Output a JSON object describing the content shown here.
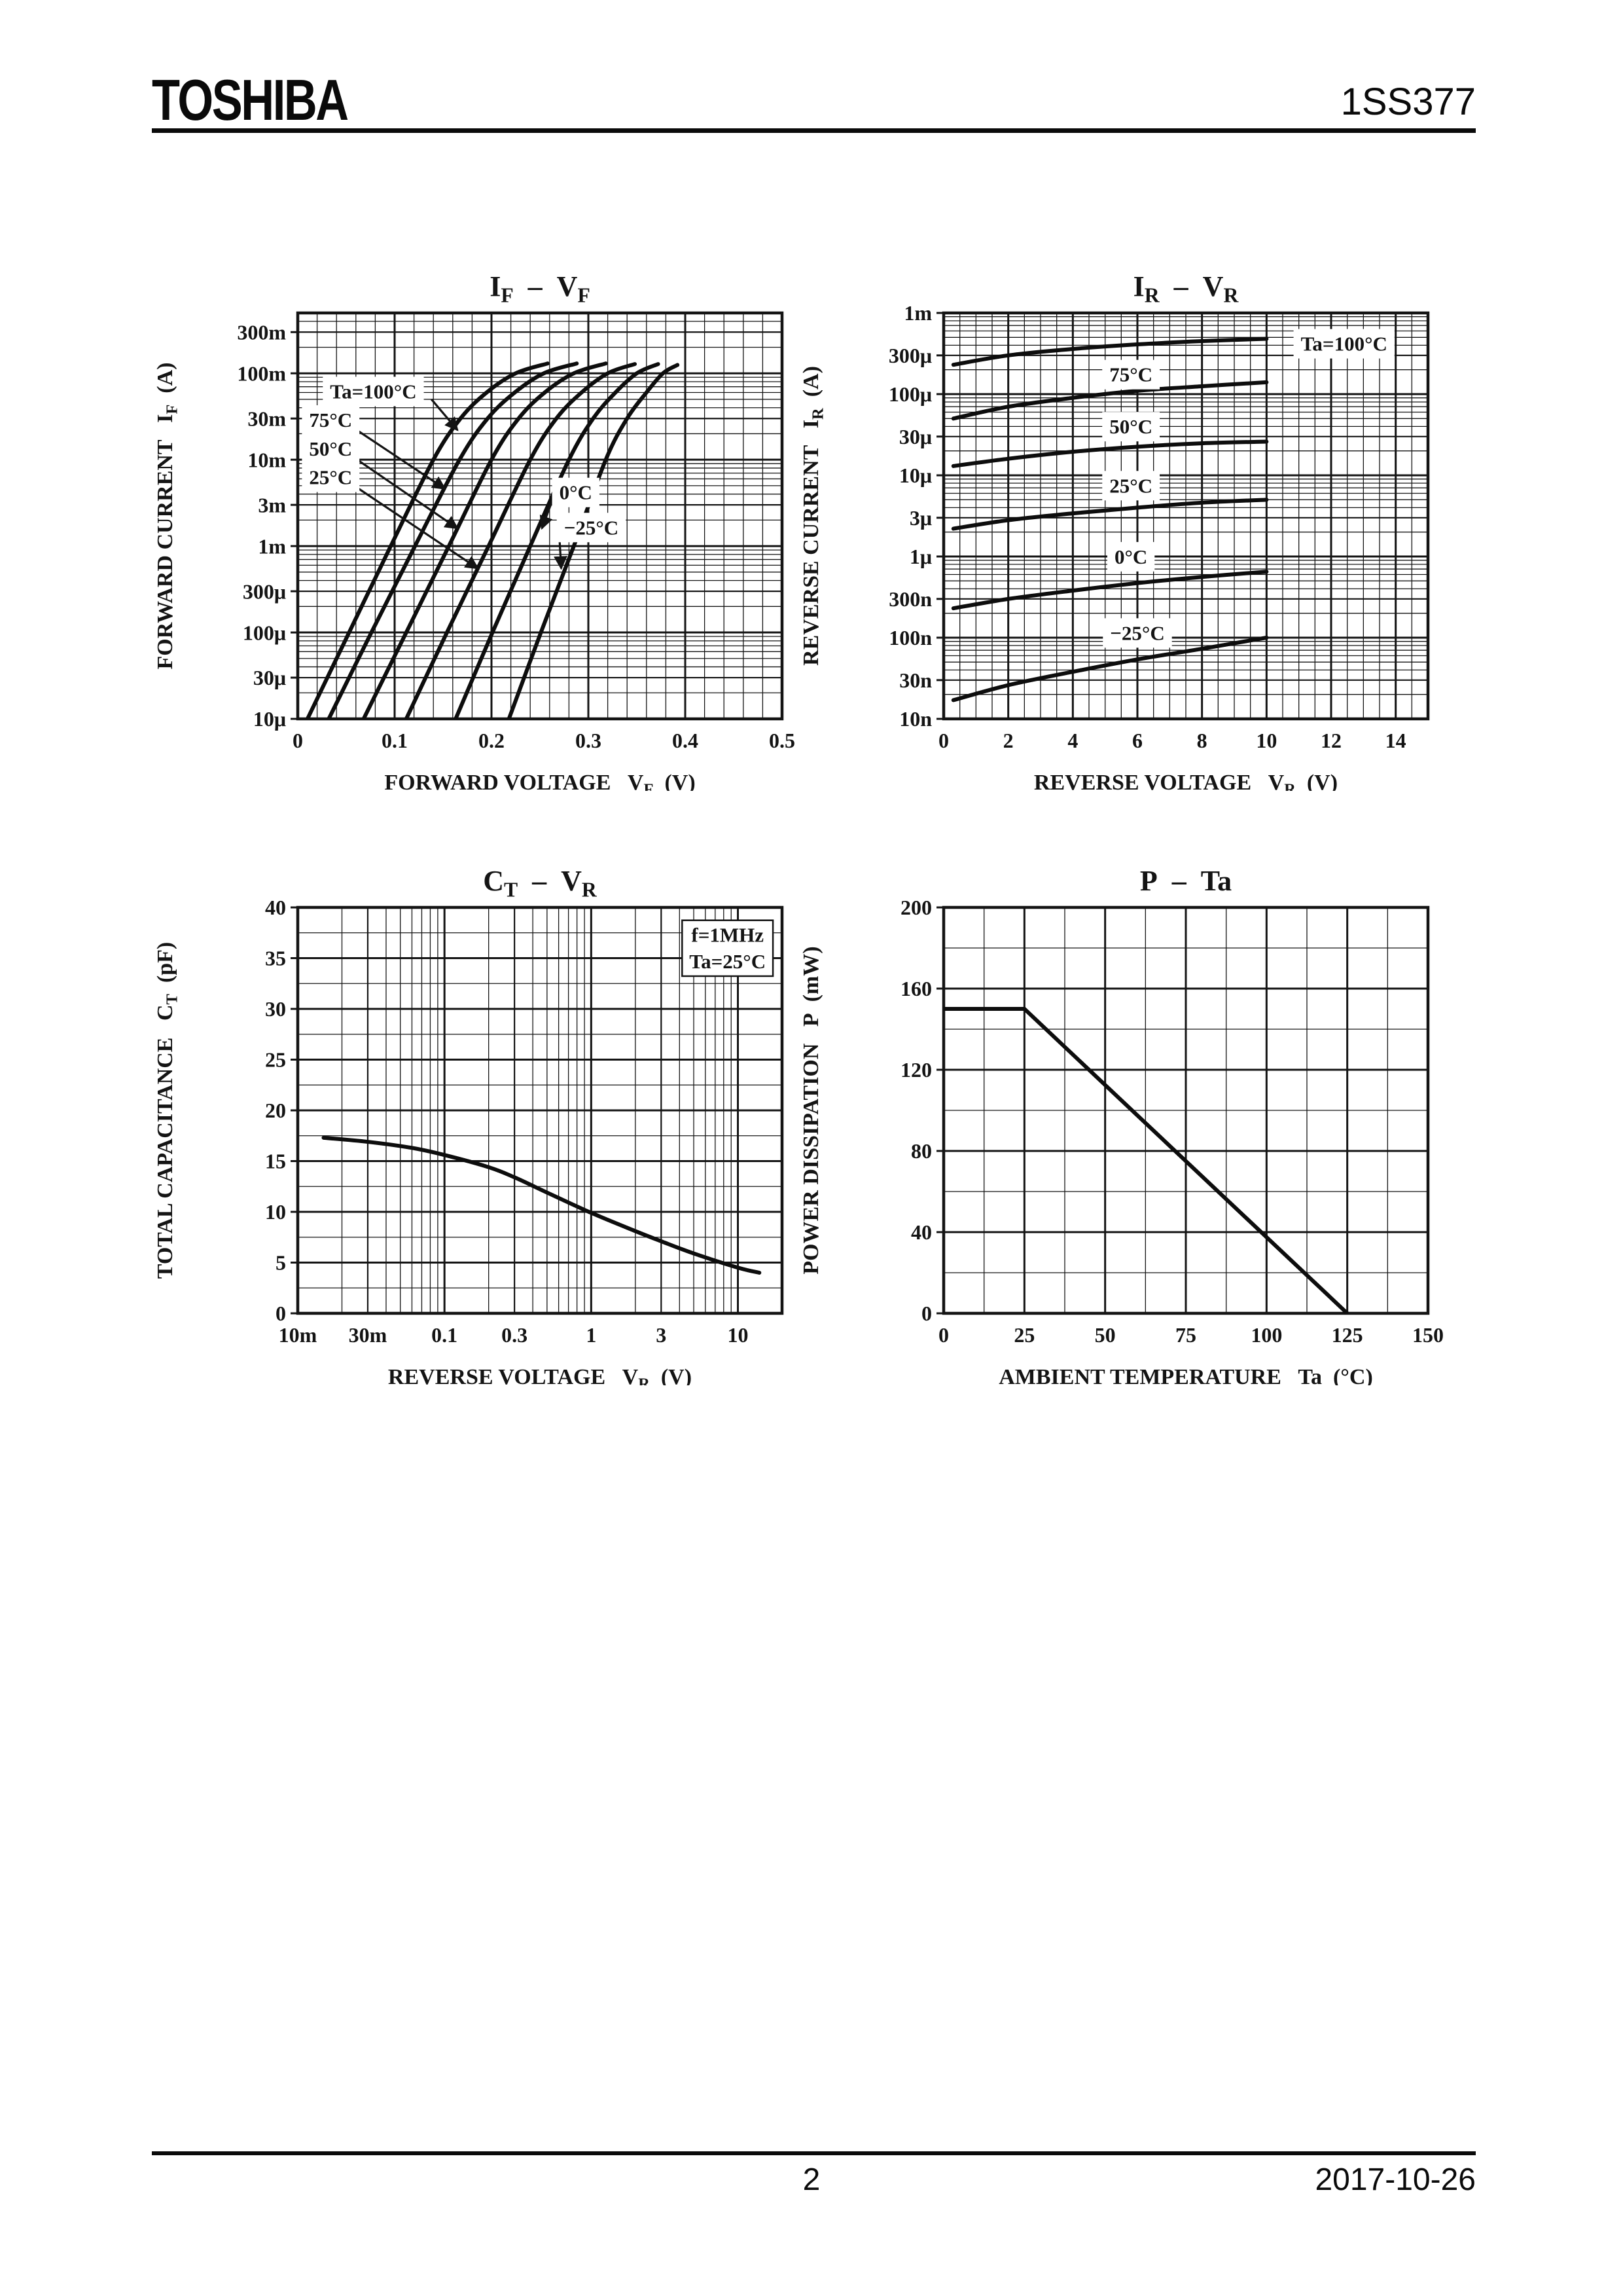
{
  "header": {
    "brand": "TOSHIBA",
    "part_number": "1SS377"
  },
  "footer": {
    "page_number": "2",
    "date": "2017-10-26"
  },
  "chart_data": [
    {
      "id": "if-vf",
      "type": "line",
      "title": [
        {
          "t": "I",
          "sub": "F"
        },
        {
          "t": "  –  "
        },
        {
          "t": "V",
          "sub": "F"
        }
      ],
      "x": {
        "scale": "linear",
        "min": 0,
        "max": 0.5,
        "major": 0.1,
        "minor": 0.02,
        "ticks": [
          [
            "0",
            0
          ],
          [
            "0.1",
            0.1
          ],
          [
            "0.2",
            0.2
          ],
          [
            "0.3",
            0.3
          ],
          [
            "0.4",
            0.4
          ],
          [
            "0.5",
            0.5
          ]
        ],
        "title": [
          {
            "t": "FORWARD VOLTAGE   "
          },
          {
            "t": "V",
            "sub": "F"
          },
          {
            "t": "  (V)"
          }
        ]
      },
      "y": {
        "scale": "log",
        "min": 1e-05,
        "max": 0.5,
        "ticks": [
          [
            "10μ",
            1e-05
          ],
          [
            "30μ",
            3e-05
          ],
          [
            "100μ",
            0.0001
          ],
          [
            "300μ",
            0.0003
          ],
          [
            "1m",
            0.001
          ],
          [
            "3m",
            0.003
          ],
          [
            "10m",
            0.01
          ],
          [
            "30m",
            0.03
          ],
          [
            "100m",
            0.1
          ],
          [
            "300m",
            0.3
          ]
        ],
        "title": [
          {
            "t": "FORWARD CURRENT   "
          },
          {
            "t": "I",
            "sub": "F"
          },
          {
            "t": "  (A)"
          }
        ]
      },
      "series": [
        {
          "name": "Ta=100°C",
          "points": [
            [
              0.01,
              1e-05
            ],
            [
              0.053,
              0.0001
            ],
            [
              0.096,
              0.001
            ],
            [
              0.14,
              0.01
            ],
            [
              0.168,
              0.03
            ],
            [
              0.195,
              0.06
            ],
            [
              0.225,
              0.1
            ],
            [
              0.258,
              0.13
            ]
          ]
        },
        {
          "name": "75°C",
          "points": [
            [
              0.032,
              1e-05
            ],
            [
              0.076,
              0.0001
            ],
            [
              0.121,
              0.001
            ],
            [
              0.167,
              0.01
            ],
            [
              0.196,
              0.03
            ],
            [
              0.224,
              0.06
            ],
            [
              0.254,
              0.1
            ],
            [
              0.288,
              0.13
            ]
          ]
        },
        {
          "name": "50°C",
          "points": [
            [
              0.068,
              1e-05
            ],
            [
              0.112,
              0.0001
            ],
            [
              0.156,
              0.001
            ],
            [
              0.2,
              0.01
            ],
            [
              0.228,
              0.03
            ],
            [
              0.255,
              0.06
            ],
            [
              0.285,
              0.1
            ],
            [
              0.318,
              0.13
            ]
          ]
        },
        {
          "name": "25°C",
          "points": [
            [
              0.112,
              1e-05
            ],
            [
              0.154,
              0.0001
            ],
            [
              0.197,
              0.001
            ],
            [
              0.24,
              0.01
            ],
            [
              0.267,
              0.03
            ],
            [
              0.293,
              0.06
            ],
            [
              0.32,
              0.1
            ],
            [
              0.348,
              0.128
            ]
          ]
        },
        {
          "name": "0°C",
          "points": [
            [
              0.163,
              1e-05
            ],
            [
              0.201,
              0.0001
            ],
            [
              0.24,
              0.001
            ],
            [
              0.28,
              0.01
            ],
            [
              0.305,
              0.03
            ],
            [
              0.328,
              0.06
            ],
            [
              0.35,
              0.1
            ],
            [
              0.372,
              0.128
            ]
          ]
        },
        {
          "name": "−25°C",
          "points": [
            [
              0.218,
              1e-05
            ],
            [
              0.251,
              0.0001
            ],
            [
              0.285,
              0.001
            ],
            [
              0.318,
              0.01
            ],
            [
              0.34,
              0.03
            ],
            [
              0.36,
              0.06
            ],
            [
              0.377,
              0.1
            ],
            [
              0.392,
              0.125
            ]
          ]
        }
      ],
      "annotations": [
        {
          "lines": [
            "Ta=100°C"
          ],
          "at": [
            0.078,
            0.062
          ],
          "arrow": [
            [
              0.138,
              0.05
            ],
            [
              0.165,
              0.022
            ]
          ]
        },
        {
          "lines": [
            "75°C"
          ],
          "at": [
            0.034,
            0.029
          ],
          "arrow": [
            [
              0.056,
              0.024
            ],
            [
              0.152,
              0.0046
            ]
          ]
        },
        {
          "lines": [
            "50°C"
          ],
          "at": [
            0.034,
            0.0135
          ],
          "arrow": [
            [
              0.056,
              0.011
            ],
            [
              0.165,
              0.0016
            ]
          ]
        },
        {
          "lines": [
            "25°C"
          ],
          "at": [
            0.034,
            0.0063
          ],
          "arrow": [
            [
              0.056,
              0.0052
            ],
            [
              0.186,
              0.00055
            ]
          ]
        },
        {
          "lines": [
            "0°C"
          ],
          "at": [
            0.287,
            0.0042
          ],
          "arrow": [
            [
              0.263,
              0.0034
            ],
            [
              0.252,
              0.0016
            ]
          ]
        },
        {
          "lines": [
            "−25°C"
          ],
          "at": [
            0.303,
            0.00165
          ],
          "arrow": [
            [
              0.27,
              0.00135
            ],
            [
              0.272,
              0.00055
            ]
          ]
        }
      ]
    },
    {
      "id": "ir-vr",
      "type": "line",
      "title": [
        {
          "t": "I",
          "sub": "R"
        },
        {
          "t": "  –  "
        },
        {
          "t": "V",
          "sub": "R"
        }
      ],
      "x": {
        "scale": "linear",
        "min": 0,
        "max": 15,
        "major": 2,
        "minor": 0.5,
        "ticks": [
          [
            "0",
            0
          ],
          [
            "2",
            2
          ],
          [
            "4",
            4
          ],
          [
            "6",
            6
          ],
          [
            "8",
            8
          ],
          [
            "10",
            10
          ],
          [
            "12",
            12
          ],
          [
            "14",
            14
          ]
        ],
        "title": [
          {
            "t": "REVERSE VOLTAGE   "
          },
          {
            "t": "V",
            "sub": "R"
          },
          {
            "t": "  (V)"
          }
        ]
      },
      "y": {
        "scale": "log",
        "min": 1e-08,
        "max": 0.001,
        "ticks": [
          [
            "1m",
            0.001
          ],
          [
            "300μ",
            0.0003
          ],
          [
            "100μ",
            0.0001
          ],
          [
            "30μ",
            3e-05
          ],
          [
            "10μ",
            1e-05
          ],
          [
            "3μ",
            3e-06
          ],
          [
            "1μ",
            1e-06
          ],
          [
            "300n",
            3e-07
          ],
          [
            "100n",
            1e-07
          ],
          [
            "30n",
            3e-08
          ],
          [
            "10n",
            1e-08
          ]
        ],
        "title": [
          {
            "t": "REVERSE CURRENT   "
          },
          {
            "t": "I",
            "sub": "R"
          },
          {
            "t": "  (A)"
          }
        ]
      },
      "series": [
        {
          "name": "Ta=100°C",
          "points": [
            [
              0.3,
              0.00023
            ],
            [
              2,
              0.0003
            ],
            [
              4,
              0.00036
            ],
            [
              6,
              0.00041
            ],
            [
              8,
              0.00045
            ],
            [
              10,
              0.00048
            ]
          ]
        },
        {
          "name": "75°C",
          "points": [
            [
              0.3,
              5e-05
            ],
            [
              2,
              7e-05
            ],
            [
              4,
              9e-05
            ],
            [
              6,
              0.00011
            ],
            [
              8,
              0.000125
            ],
            [
              10,
              0.00014
            ]
          ]
        },
        {
          "name": "50°C",
          "points": [
            [
              0.3,
              1.3e-05
            ],
            [
              2,
              1.6e-05
            ],
            [
              4,
              1.95e-05
            ],
            [
              6,
              2.25e-05
            ],
            [
              8,
              2.48e-05
            ],
            [
              10,
              2.6e-05
            ]
          ]
        },
        {
          "name": "25°C",
          "points": [
            [
              0.3,
              2.2e-06
            ],
            [
              2,
              2.8e-06
            ],
            [
              4,
              3.4e-06
            ],
            [
              6,
              4e-06
            ],
            [
              8,
              4.6e-06
            ],
            [
              10,
              5e-06
            ]
          ]
        },
        {
          "name": "0°C",
          "points": [
            [
              0.3,
              2.3e-07
            ],
            [
              2,
              3e-07
            ],
            [
              4,
              3.8e-07
            ],
            [
              6,
              4.7e-07
            ],
            [
              8,
              5.6e-07
            ],
            [
              10,
              6.5e-07
            ]
          ]
        },
        {
          "name": "−25°C",
          "points": [
            [
              0.3,
              1.7e-08
            ],
            [
              2,
              2.6e-08
            ],
            [
              4,
              3.8e-08
            ],
            [
              6,
              5.4e-08
            ],
            [
              8,
              7.3e-08
            ],
            [
              10,
              1e-07
            ]
          ]
        }
      ],
      "annotations": [
        {
          "lines": [
            "Ta=100°C"
          ],
          "at": [
            12.4,
            0.00042
          ]
        },
        {
          "lines": [
            "75°C"
          ],
          "at": [
            5.8,
            0.000175
          ]
        },
        {
          "lines": [
            "50°C"
          ],
          "at": [
            5.8,
            4e-05
          ]
        },
        {
          "lines": [
            "25°C"
          ],
          "at": [
            5.8,
            7.5e-06
          ]
        },
        {
          "lines": [
            "0°C"
          ],
          "at": [
            5.8,
            1e-06
          ]
        },
        {
          "lines": [
            "−25°C"
          ],
          "at": [
            6.0,
            1.15e-07
          ]
        }
      ]
    },
    {
      "id": "ct-vr",
      "type": "line",
      "title": [
        {
          "t": "C",
          "sub": "T"
        },
        {
          "t": "  –  "
        },
        {
          "t": "V",
          "sub": "R"
        }
      ],
      "x": {
        "scale": "log",
        "min": 0.01,
        "max": 20,
        "ticks": [
          [
            "10m",
            0.01
          ],
          [
            "30m",
            0.03
          ],
          [
            "0.1",
            0.1
          ],
          [
            "0.3",
            0.3
          ],
          [
            "1",
            1
          ],
          [
            "3",
            3
          ],
          [
            "10",
            10
          ]
        ],
        "title": [
          {
            "t": "REVERSE VOLTAGE   "
          },
          {
            "t": "V",
            "sub": "R"
          },
          {
            "t": "  (V)"
          }
        ]
      },
      "y": {
        "scale": "linear",
        "min": 0,
        "max": 40,
        "major": 5,
        "minor": 2.5,
        "ticks": [
          [
            "0",
            0
          ],
          [
            "5",
            5
          ],
          [
            "10",
            10
          ],
          [
            "15",
            15
          ],
          [
            "20",
            20
          ],
          [
            "25",
            25
          ],
          [
            "30",
            30
          ],
          [
            "35",
            35
          ],
          [
            "40",
            40
          ]
        ],
        "title": [
          {
            "t": "TOTAL CAPACITANCE   "
          },
          {
            "t": "C",
            "sub": "T"
          },
          {
            "t": "  (pF)"
          }
        ]
      },
      "series": [
        {
          "name": "CT",
          "points": [
            [
              0.015,
              17.3
            ],
            [
              0.03,
              16.9
            ],
            [
              0.06,
              16.3
            ],
            [
              0.1,
              15.6
            ],
            [
              0.2,
              14.4
            ],
            [
              0.3,
              13.4
            ],
            [
              0.5,
              11.9
            ],
            [
              1,
              9.9
            ],
            [
              2,
              8.1
            ],
            [
              3,
              7.1
            ],
            [
              5,
              5.9
            ],
            [
              10,
              4.5
            ],
            [
              14,
              4.0
            ]
          ]
        }
      ],
      "annotations": [
        {
          "lines": [
            "f=1MHz",
            "Ta=25°C"
          ],
          "at": [
            8.5,
            36
          ],
          "box": true
        }
      ]
    },
    {
      "id": "p-ta",
      "type": "line",
      "title": [
        {
          "t": "P  –  Ta"
        }
      ],
      "x": {
        "scale": "linear",
        "min": 0,
        "max": 150,
        "major": 25,
        "minor": 12.5,
        "ticks": [
          [
            "0",
            0
          ],
          [
            "25",
            25
          ],
          [
            "50",
            50
          ],
          [
            "75",
            75
          ],
          [
            "100",
            100
          ],
          [
            "125",
            125
          ],
          [
            "150",
            150
          ]
        ],
        "title": [
          {
            "t": "AMBIENT TEMPERATURE   Ta  (°C)"
          }
        ]
      },
      "y": {
        "scale": "linear",
        "min": 0,
        "max": 200,
        "major": 40,
        "minor": 20,
        "ticks": [
          [
            "0",
            0
          ],
          [
            "40",
            40
          ],
          [
            "80",
            80
          ],
          [
            "120",
            120
          ],
          [
            "160",
            160
          ],
          [
            "200",
            200
          ]
        ],
        "title": [
          {
            "t": "POWER DISSIPATION   P  (mW)"
          }
        ]
      },
      "series": [
        {
          "name": "P",
          "points": [
            [
              0,
              150
            ],
            [
              25,
              150
            ],
            [
              125,
              0
            ]
          ],
          "straight": true
        }
      ],
      "annotations": []
    }
  ]
}
